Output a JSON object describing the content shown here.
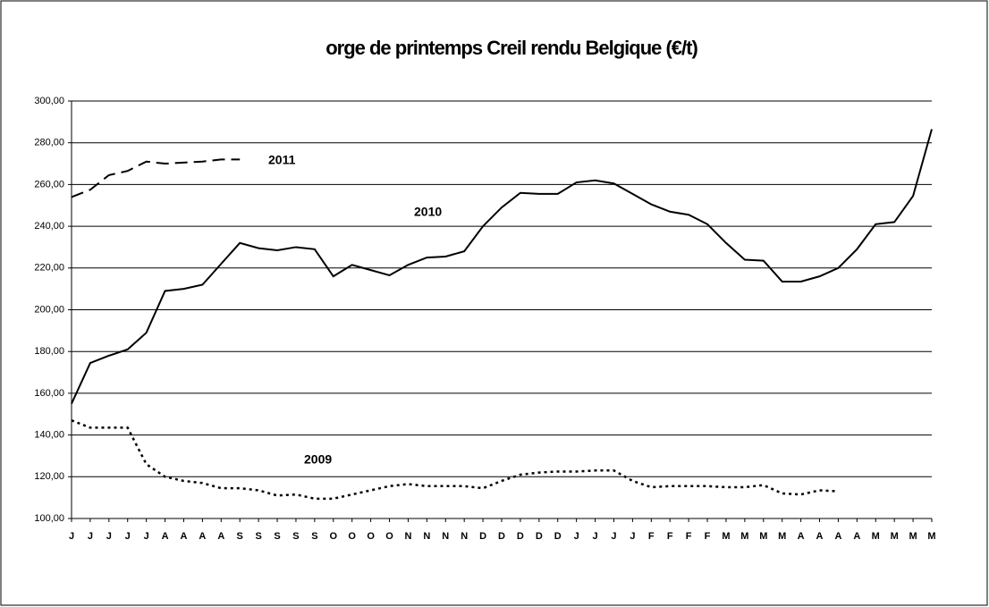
{
  "chart_data": {
    "type": "line",
    "title": "orge de printemps Creil rendu Belgique (€/t)",
    "categories": [
      "J",
      "J",
      "J",
      "J",
      "J",
      "A",
      "A",
      "A",
      "A",
      "S",
      "S",
      "S",
      "S",
      "S",
      "O",
      "O",
      "O",
      "O",
      "N",
      "N",
      "N",
      "N",
      "D",
      "D",
      "D",
      "D",
      "D",
      "J",
      "J",
      "J",
      "J",
      "F",
      "F",
      "F",
      "F",
      "M",
      "M",
      "M",
      "M",
      "A",
      "A",
      "A",
      "A",
      "M",
      "M",
      "M",
      "M"
    ],
    "series": [
      {
        "name": "2011",
        "color": "#000000",
        "style": "dashed",
        "values": [
          254,
          257.5,
          264.5,
          266.5,
          271,
          270,
          270.5,
          271,
          272,
          272,
          null,
          null,
          null,
          null,
          null,
          null,
          null,
          null,
          null,
          null,
          null,
          null,
          null,
          null,
          null,
          null,
          null,
          null,
          null,
          null,
          null,
          null,
          null,
          null,
          null,
          null,
          null,
          null,
          null,
          null,
          null,
          null,
          null,
          null,
          null,
          null,
          null
        ]
      },
      {
        "name": "2010",
        "color": "#000000",
        "style": "solid",
        "values": [
          155,
          174.5,
          178,
          181,
          189,
          209,
          210,
          212,
          222,
          232,
          229.5,
          228.5,
          230,
          229,
          216,
          221.5,
          219,
          216.5,
          221.5,
          225,
          225.5,
          228,
          240,
          249,
          256,
          255.5,
          255.5,
          261,
          262,
          260.5,
          255.5,
          250.5,
          247,
          245.5,
          241,
          232,
          224,
          223.5,
          213.5,
          213.5,
          216,
          220,
          229,
          241,
          242,
          254.5,
          286.5
        ]
      },
      {
        "name": "2009",
        "color": "#000000",
        "style": "dotted",
        "values": [
          147,
          143.5,
          143.5,
          143.5,
          126,
          120,
          118,
          117,
          114.5,
          114.5,
          113.5,
          111,
          111.5,
          109.5,
          109.5,
          111.5,
          113.5,
          115.5,
          116.5,
          115.5,
          115.5,
          115.5,
          114.5,
          118,
          121,
          122,
          122.5,
          122.5,
          123,
          123,
          118,
          115,
          115.5,
          115.5,
          115.5,
          115,
          115,
          116,
          112,
          111.5,
          113.5,
          113,
          null,
          null,
          null,
          null,
          null
        ]
      }
    ],
    "ylim": [
      100,
      300
    ],
    "yticks": [
      {
        "value": 100,
        "label": "100,00"
      },
      {
        "value": 120,
        "label": "120,00"
      },
      {
        "value": 140,
        "label": "140,00"
      },
      {
        "value": 160,
        "label": "160,00"
      },
      {
        "value": 180,
        "label": "180,00"
      },
      {
        "value": 200,
        "label": "200,00"
      },
      {
        "value": 220,
        "label": "220,00"
      },
      {
        "value": 240,
        "label": "240,00"
      },
      {
        "value": 260,
        "label": "260,00"
      },
      {
        "value": 280,
        "label": "280,00"
      },
      {
        "value": 300,
        "label": "300,00"
      }
    ],
    "grid": true
  }
}
